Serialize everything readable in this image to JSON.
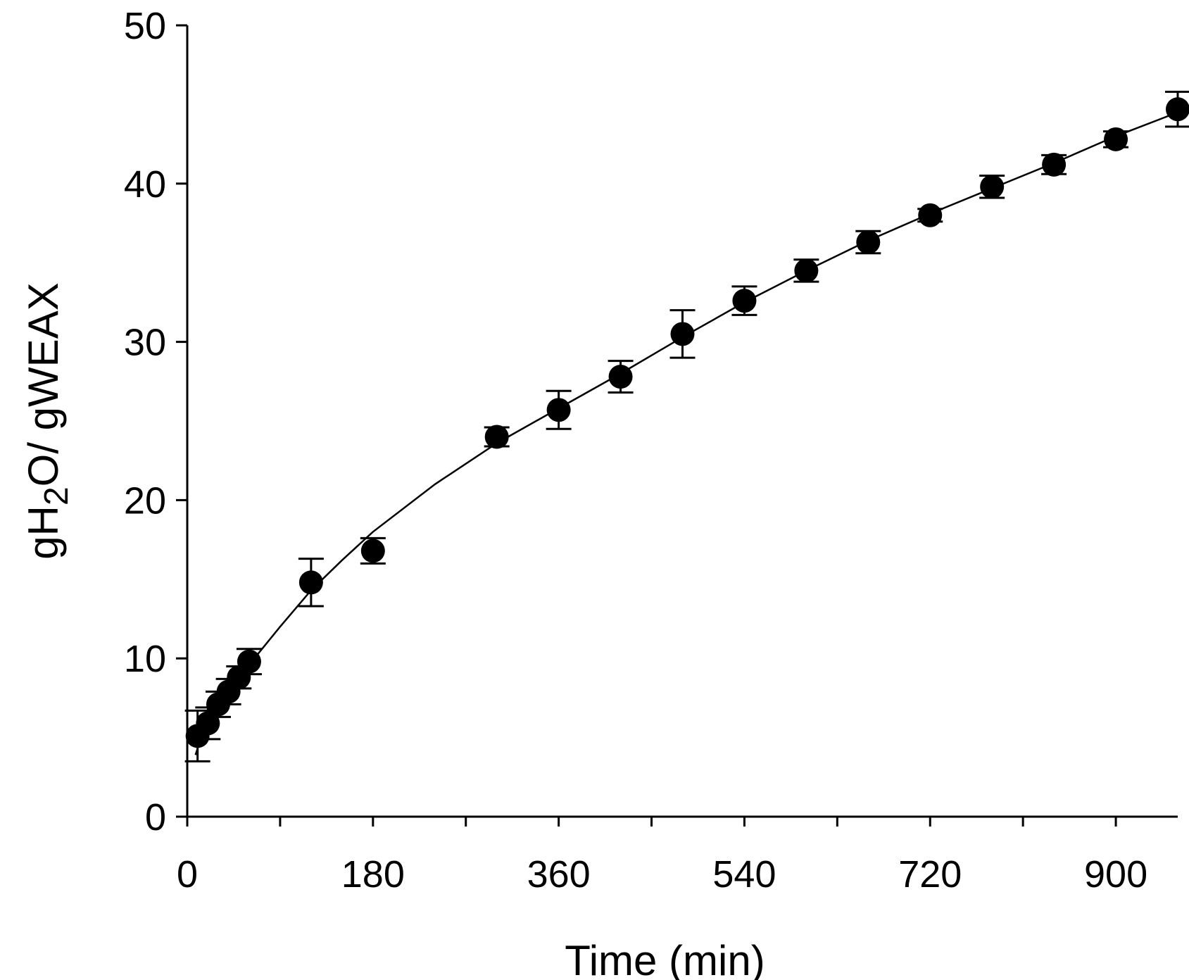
{
  "chart_data": {
    "type": "scatter",
    "xlabel": "Time (min)",
    "ylabel": {
      "prefix": "gH",
      "subscript": "2",
      "suffix": "O/ gWEAX"
    },
    "xlim": [
      0,
      960
    ],
    "ylim": [
      0,
      50
    ],
    "xticks": [
      0,
      180,
      360,
      540,
      720,
      900
    ],
    "yticks": [
      0,
      10,
      20,
      30,
      40,
      50
    ],
    "grid": false,
    "series": [
      {
        "points": [
          {
            "x": 10,
            "y": 5.1,
            "err": 1.6
          },
          {
            "x": 20,
            "y": 5.9,
            "err": 1.0
          },
          {
            "x": 30,
            "y": 7.1,
            "err": 0.8
          },
          {
            "x": 40,
            "y": 7.9,
            "err": 0.8
          },
          {
            "x": 50,
            "y": 8.8,
            "err": 0.7
          },
          {
            "x": 60,
            "y": 9.8,
            "err": 0.8
          },
          {
            "x": 120,
            "y": 14.8,
            "err": 1.5
          },
          {
            "x": 180,
            "y": 16.8,
            "err": 0.8
          },
          {
            "x": 300,
            "y": 24.0,
            "err": 0.6
          },
          {
            "x": 360,
            "y": 25.7,
            "err": 1.2
          },
          {
            "x": 420,
            "y": 27.8,
            "err": 1.0
          },
          {
            "x": 480,
            "y": 30.5,
            "err": 1.5
          },
          {
            "x": 540,
            "y": 32.6,
            "err": 0.9
          },
          {
            "x": 600,
            "y": 34.5,
            "err": 0.7
          },
          {
            "x": 660,
            "y": 36.3,
            "err": 0.7
          },
          {
            "x": 720,
            "y": 38.0,
            "err": 0.4
          },
          {
            "x": 780,
            "y": 39.8,
            "err": 0.7
          },
          {
            "x": 840,
            "y": 41.2,
            "err": 0.6
          },
          {
            "x": 900,
            "y": 42.8,
            "err": 0.5
          },
          {
            "x": 960,
            "y": 44.7,
            "err": 1.1
          }
        ],
        "fit": {
          "x": [
            8,
            20,
            40,
            60,
            90,
            120,
            150,
            180,
            240,
            300,
            360,
            420,
            480,
            540,
            600,
            660,
            720,
            780,
            840,
            900,
            960
          ],
          "y": [
            3.9,
            6.3,
            8.0,
            9.6,
            12.0,
            14.3,
            16.2,
            18.0,
            21.0,
            23.6,
            25.8,
            28.0,
            30.3,
            32.5,
            34.5,
            36.4,
            38.1,
            39.7,
            41.3,
            43.0,
            44.5
          ]
        }
      }
    ]
  }
}
